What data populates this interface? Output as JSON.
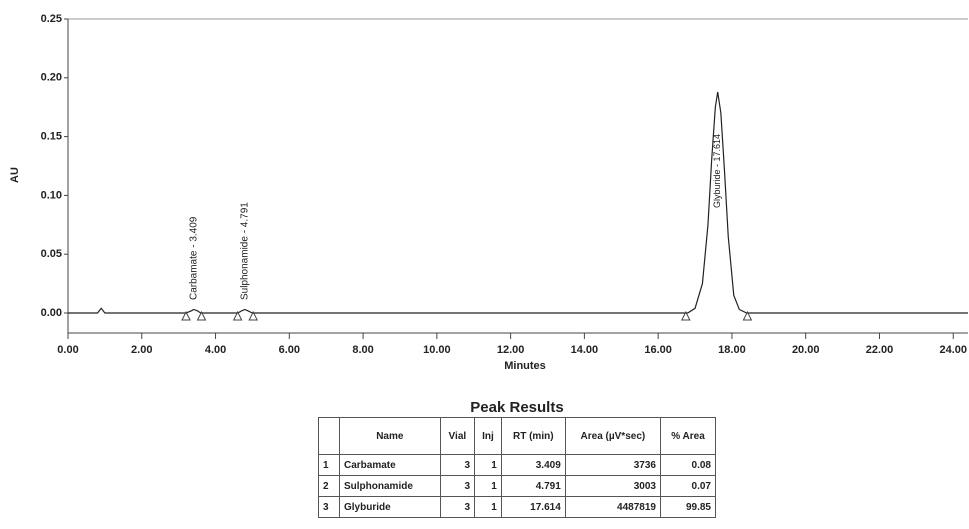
{
  "chart_data": {
    "type": "line",
    "x_label": "Minutes",
    "y_label": "AU",
    "x": [
      0,
      0.8,
      0.9,
      1.0,
      1.2,
      3.2,
      3.35,
      3.409,
      3.5,
      3.6,
      4.6,
      4.72,
      4.791,
      4.87,
      5.0,
      16.8,
      17.0,
      17.2,
      17.35,
      17.45,
      17.55,
      17.614,
      17.7,
      17.8,
      17.9,
      18.05,
      18.2,
      18.4,
      24.4
    ],
    "values": [
      0,
      0,
      0.004,
      0,
      0,
      0,
      0.002,
      0.003,
      0.002,
      0,
      0,
      0.002,
      0.003,
      0.002,
      0,
      0,
      0.004,
      0.025,
      0.075,
      0.13,
      0.175,
      0.188,
      0.17,
      0.12,
      0.065,
      0.015,
      0.003,
      0,
      0
    ],
    "color": "#222222",
    "xlim": [
      0,
      24.4
    ],
    "ylim": [
      -0.017,
      0.25
    ],
    "xticks": [
      {
        "value": 0,
        "label": "0.00"
      },
      {
        "value": 2,
        "label": "2.00"
      },
      {
        "value": 4,
        "label": "4.00"
      },
      {
        "value": 6,
        "label": "6.00"
      },
      {
        "value": 8,
        "label": "8.00"
      },
      {
        "value": 10,
        "label": "10.00"
      },
      {
        "value": 12,
        "label": "12.00"
      },
      {
        "value": 14,
        "label": "14.00"
      },
      {
        "value": 16,
        "label": "16.00"
      },
      {
        "value": 18,
        "label": "18.00"
      },
      {
        "value": 20,
        "label": "20.00"
      },
      {
        "value": 22,
        "label": "22.00"
      },
      {
        "value": 24,
        "label": "24.00"
      }
    ],
    "yticks": [
      {
        "value": 0,
        "label": "0.00"
      },
      {
        "value": 0.05,
        "label": "0.05"
      },
      {
        "value": 0.1,
        "label": "0.10"
      },
      {
        "value": 0.15,
        "label": "0.15"
      },
      {
        "value": 0.2,
        "label": "0.20"
      },
      {
        "value": 0.25,
        "label": "0.25"
      }
    ],
    "peak_labels": [
      {
        "x": 3.409,
        "text": "Carbamate - 3.409"
      },
      {
        "x": 4.791,
        "text": "Sulphonamide - 4.791"
      },
      {
        "x": 17.614,
        "text": "Glyburide - 17.614"
      }
    ],
    "baseline_marks": [
      3.2,
      3.62,
      4.6,
      5.02,
      16.75,
      18.42
    ]
  },
  "table": {
    "title": "Peak Results",
    "columns": [
      "Name",
      "Vial",
      "Inj",
      "RT (min)",
      "Area (µV*sec)",
      "% Area"
    ],
    "rows": [
      [
        1,
        "Carbamate",
        3,
        1,
        3.409,
        3736,
        0.08
      ],
      [
        2,
        "Sulphonamide",
        3,
        1,
        4.791,
        3003,
        0.07
      ],
      [
        3,
        "Glyburide",
        3,
        1,
        17.614,
        4487819,
        99.85
      ]
    ]
  }
}
